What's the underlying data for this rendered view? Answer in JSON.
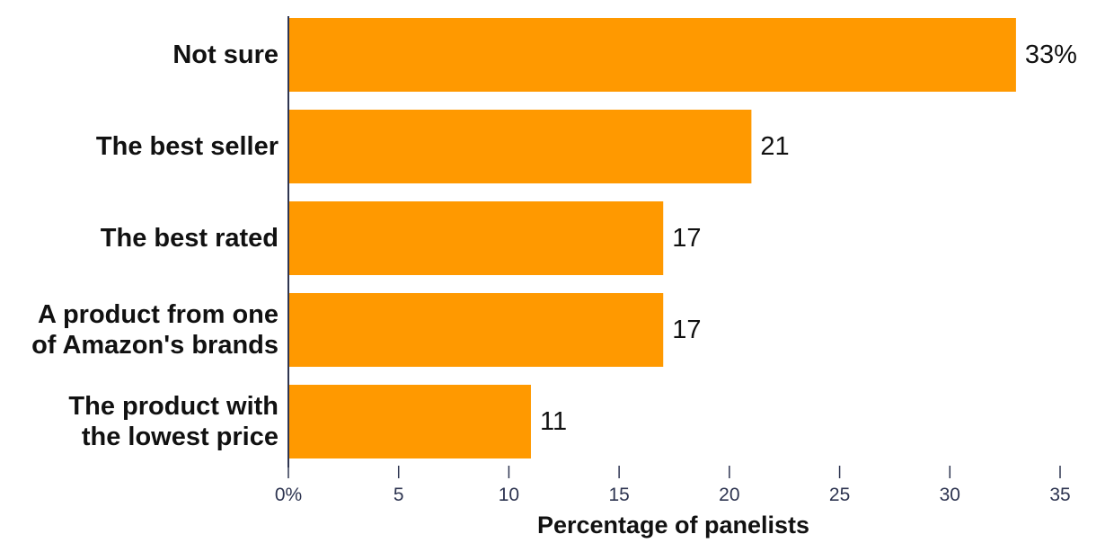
{
  "chart_data": {
    "type": "bar",
    "orientation": "horizontal",
    "categories": [
      [
        "Not sure"
      ],
      [
        "The best seller"
      ],
      [
        "The best rated"
      ],
      [
        "A product from one",
        "of Amazon's brands"
      ],
      [
        "The product with",
        "the lowest price"
      ]
    ],
    "values": [
      33,
      21,
      17,
      17,
      11
    ],
    "data_labels": [
      "33%",
      "21",
      "17",
      "17",
      "11"
    ],
    "xlabel": "Percentage of panelists",
    "ylabel": "",
    "xlim": [
      0,
      35
    ],
    "xticks": [
      0,
      5,
      10,
      15,
      20,
      25,
      30,
      35
    ],
    "xtick_labels": [
      "0%",
      "5",
      "10",
      "15",
      "20",
      "25",
      "30",
      "35"
    ],
    "grid": false,
    "colors": {
      "bar": "#ff9900",
      "axis": "#2e3551",
      "text": "#111111"
    }
  }
}
